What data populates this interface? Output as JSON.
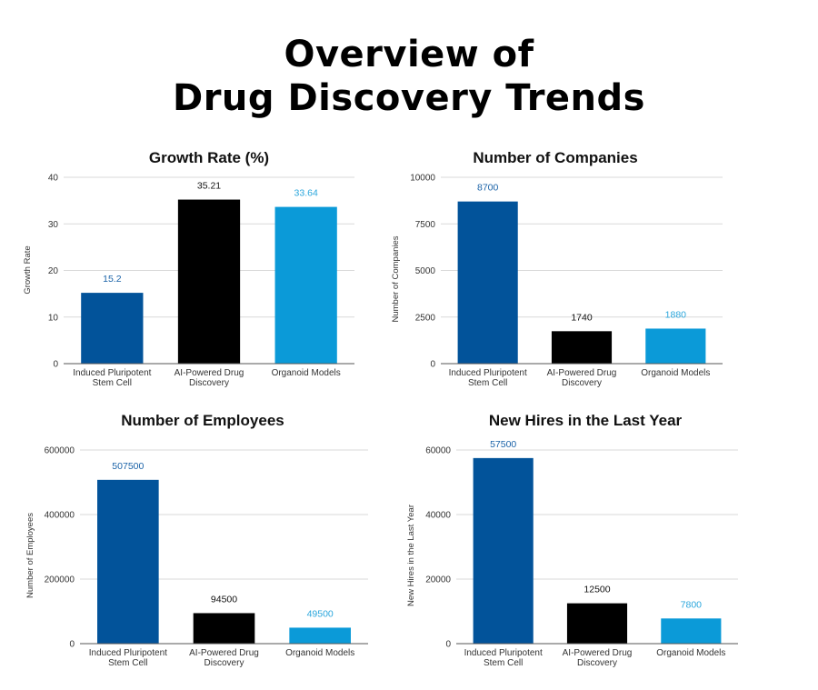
{
  "page": {
    "title_lines": [
      "Overview of",
      "Drug Discovery Trends"
    ]
  },
  "colors": {
    "Induced Pluripotent Stem Cell": "#02539a",
    "AI-Powered Drug Discovery": "#000000",
    "Organoid Models": "#0b9ad8",
    "label_ipsc": "#1b63a8",
    "label_ai": "#111111",
    "label_organoid": "#2aa6dc"
  },
  "chart_data": [
    {
      "type": "bar",
      "title": "Growth Rate (%)",
      "ylabel": "Growth Rate",
      "categories": [
        "Induced Pluripotent Stem Cell",
        "AI-Powered Drug Discovery",
        "Organoid Models"
      ],
      "category_lines": [
        [
          "Induced Pluripotent",
          "Stem Cell"
        ],
        [
          "AI-Powered Drug",
          "Discovery"
        ],
        [
          "Organoid Models"
        ]
      ],
      "values": [
        15.2,
        35.21,
        33.64
      ],
      "value_labels": [
        "15.2",
        "35.21",
        "33.64"
      ],
      "ylim": [
        0,
        40
      ],
      "yticks": [
        0,
        10,
        20,
        30,
        40
      ],
      "grid": true
    },
    {
      "type": "bar",
      "title": "Number of Companies",
      "ylabel": "Number of Companies",
      "categories": [
        "Induced Pluripotent Stem Cell",
        "AI-Powered Drug Discovery",
        "Organoid Models"
      ],
      "category_lines": [
        [
          "Induced Pluripotent",
          "Stem Cell"
        ],
        [
          "AI-Powered Drug",
          "Discovery"
        ],
        [
          "Organoid Models"
        ]
      ],
      "values": [
        8700,
        1740,
        1880
      ],
      "value_labels": [
        "8700",
        "1740",
        "1880"
      ],
      "ylim": [
        0,
        10000
      ],
      "yticks": [
        0,
        2500,
        5000,
        7500,
        10000
      ],
      "grid": true
    },
    {
      "type": "bar",
      "title": "Number of Employees",
      "ylabel": "Number of Employees",
      "categories": [
        "Induced Pluripotent Stem Cell",
        "AI-Powered Drug Discovery",
        "Organoid Models"
      ],
      "category_lines": [
        [
          "Induced Pluripotent",
          "Stem Cell"
        ],
        [
          "AI-Powered Drug",
          "Discovery"
        ],
        [
          "Organoid Models"
        ]
      ],
      "values": [
        507500,
        94500,
        49500
      ],
      "value_labels": [
        "507500",
        "94500",
        "49500"
      ],
      "ylim": [
        0,
        600000
      ],
      "yticks": [
        0,
        200000,
        400000,
        600000
      ],
      "grid": true
    },
    {
      "type": "bar",
      "title": "New Hires in the Last Year",
      "ylabel": "New Hires in the Last Year",
      "categories": [
        "Induced Pluripotent Stem Cell",
        "AI-Powered Drug Discovery",
        "Organoid Models"
      ],
      "category_lines": [
        [
          "Induced Pluripotent",
          "Stem Cell"
        ],
        [
          "AI-Powered Drug",
          "Discovery"
        ],
        [
          "Organoid Models"
        ]
      ],
      "values": [
        57500,
        12500,
        7800
      ],
      "value_labels": [
        "57500",
        "12500",
        "7800"
      ],
      "ylim": [
        0,
        60000
      ],
      "yticks": [
        0,
        20000,
        40000,
        60000
      ],
      "grid": true
    }
  ]
}
